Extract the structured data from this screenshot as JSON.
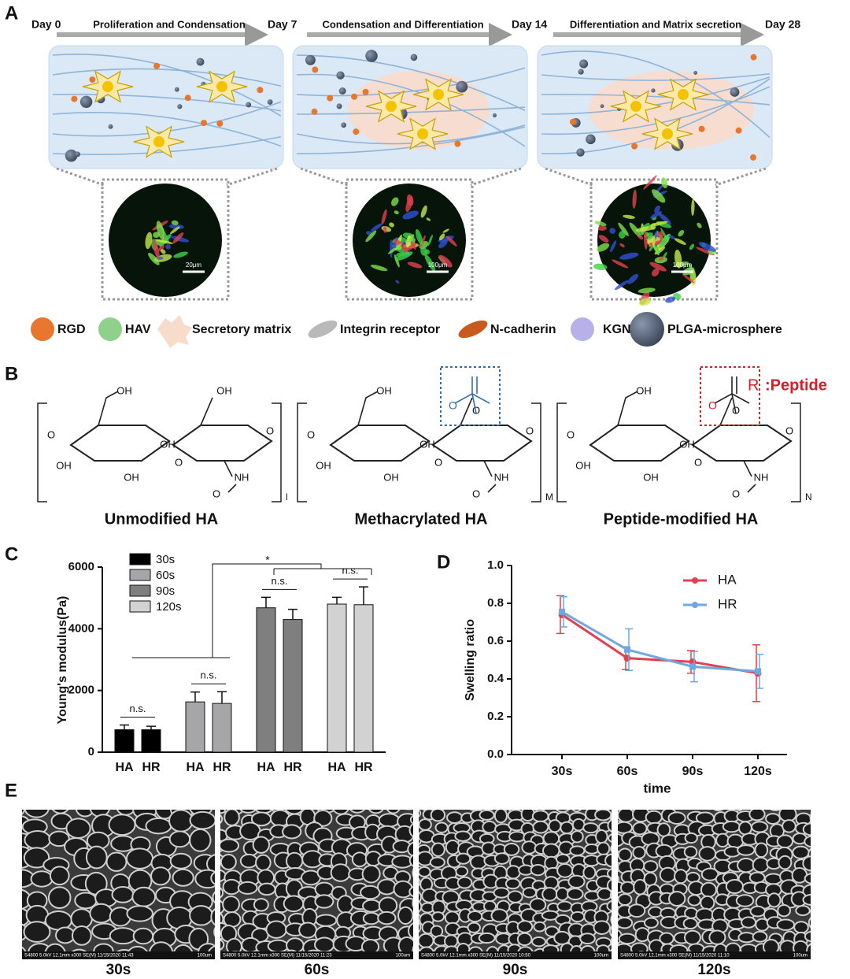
{
  "panel_a": {
    "label": "A",
    "timeline": [
      "Day 0",
      "Proliferation and Condensation",
      "Day 7",
      "Condensation and Differentiation",
      "Day 14",
      "Differentiation and Matrix secretion",
      "Day 28"
    ],
    "scale_bars": [
      "20μm",
      "100μm",
      "100μm"
    ],
    "legend": [
      "RGD",
      "HAV",
      "Secretory matrix",
      "Integrin receptor",
      "N-cadherin",
      "KGN",
      "PLGA-microsphere"
    ]
  },
  "panel_b": {
    "label": "B",
    "units": [
      {
        "name": "Unmodified HA",
        "subscript": "l",
        "atoms": [
          "O",
          "OH",
          "OH",
          "O",
          "OH",
          "OH",
          "O",
          "OH",
          "NH",
          "O"
        ],
        "box": []
      },
      {
        "name": "Methacrylated HA",
        "subscript": "M",
        "atoms": [
          "O",
          "OH",
          "O",
          "O",
          "OH",
          "OH",
          "O",
          "OH",
          "NH",
          "O"
        ],
        "box": [
          "O"
        ]
      },
      {
        "name": "Peptide-modified HA",
        "subscript": "N",
        "atoms": [
          "O",
          "OH",
          "O",
          "O",
          "OH",
          "OH",
          "O",
          "OH",
          "NH",
          "O"
        ],
        "box": [
          "O",
          "R",
          ":Peptide"
        ]
      }
    ]
  },
  "chart_data": [
    {
      "type": "bar",
      "panel_label": "C",
      "ylabel": "Young's modulus(Pa)",
      "categories": [
        "HA",
        "HR"
      ],
      "series": [
        {
          "name": "30s",
          "color": "#000000",
          "values": [
            730,
            730
          ],
          "errors": [
            150,
            110
          ]
        },
        {
          "name": "60s",
          "color": "#a6a6a8",
          "values": [
            1630,
            1580
          ],
          "errors": [
            320,
            380
          ]
        },
        {
          "name": "90s",
          "color": "#7f7f7f",
          "values": [
            4680,
            4300
          ],
          "errors": [
            340,
            330
          ]
        },
        {
          "name": "120s",
          "color": "#d2d2d2",
          "values": [
            4800,
            4780
          ],
          "errors": [
            220,
            580
          ]
        }
      ],
      "ylim": [
        0,
        6000
      ],
      "yticks": [
        0,
        2000,
        4000,
        6000
      ],
      "annotations": [
        "n.s.",
        "n.s.",
        "n.s.",
        "n.s.",
        "*"
      ]
    },
    {
      "type": "line",
      "panel_label": "D",
      "xlabel": "time",
      "ylabel": "Swelling ratio",
      "categories": [
        "30s",
        "60s",
        "90s",
        "120s"
      ],
      "series": [
        {
          "name": "HA",
          "color": "#e0404f",
          "values": [
            0.74,
            0.51,
            0.49,
            0.43
          ],
          "errors": [
            0.1,
            0.06,
            0.06,
            0.15
          ]
        },
        {
          "name": "HR",
          "color": "#6fa8e0",
          "values": [
            0.755,
            0.555,
            0.465,
            0.44
          ],
          "errors": [
            0.08,
            0.11,
            0.08,
            0.09
          ]
        }
      ],
      "ylim": [
        0,
        1
      ],
      "yticks": [
        {
          "value": 0,
          "label": "0.0"
        },
        0.2,
        0.4,
        0.6,
        0.8,
        {
          "value": 1,
          "label": "1.0"
        }
      ]
    }
  ],
  "panel_e": {
    "label": "E",
    "images": [
      {
        "caption": "30s",
        "info": "S4800 5.0kV 12.1mm x300 SE(M) 11/15/2020 11:43",
        "scale": "100um"
      },
      {
        "caption": "60s",
        "info": "S4800 5.0kV 12.1mm x300 SE(M) 11/15/2020 11:23",
        "scale": "100um"
      },
      {
        "caption": "90s",
        "info": "S4800 5.0kV 12.1mm x300 SE(M) 11/15/2020 10:50",
        "scale": "100um"
      },
      {
        "caption": "120s",
        "info": "S4800 5.0kV 12.1mm x300 SE(M) 11/15/2020 11:10",
        "scale": "100um"
      }
    ]
  }
}
